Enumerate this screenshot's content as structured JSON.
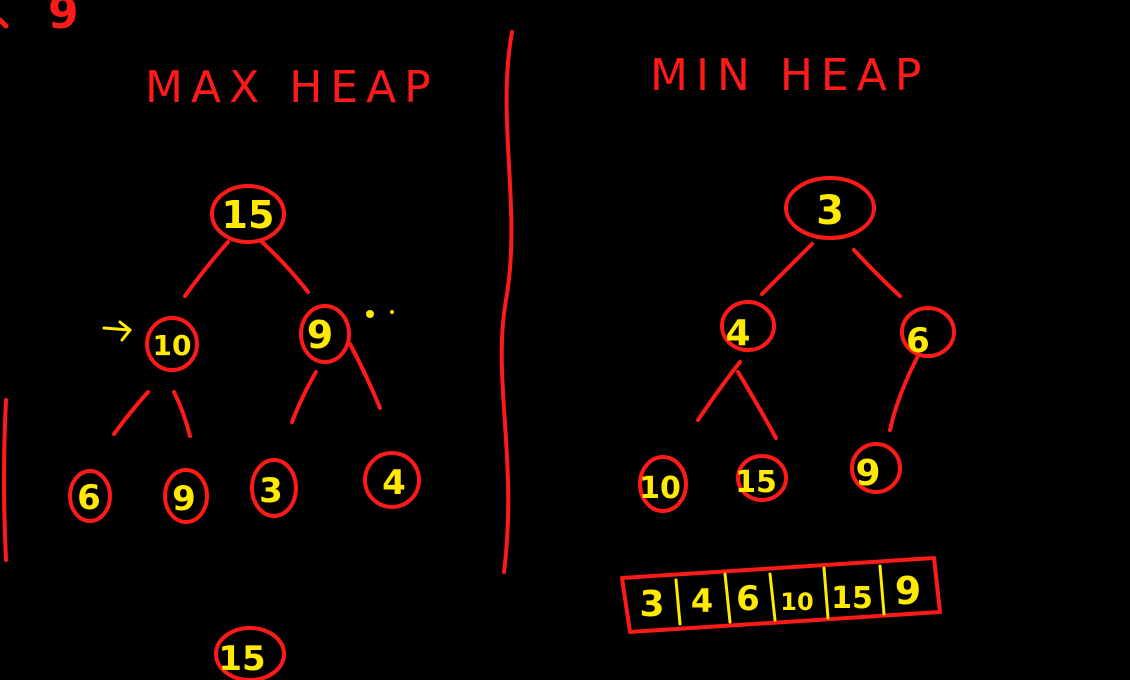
{
  "colors": {
    "background": "#000000",
    "red_ink": "#ff1a1a",
    "yellow_ink": "#ffea00"
  },
  "corner_fragment": "9",
  "max_heap": {
    "title": "MAX HEAP",
    "nodes": [
      "15",
      "10",
      "9",
      "6",
      "9",
      "3",
      "4"
    ],
    "extra_node": "15"
  },
  "min_heap": {
    "title": "MIN HEAP",
    "nodes": [
      "3",
      "4",
      "6",
      "10",
      "15",
      "9"
    ],
    "array": [
      "3",
      "4",
      "6",
      "10",
      "15",
      "9"
    ]
  }
}
